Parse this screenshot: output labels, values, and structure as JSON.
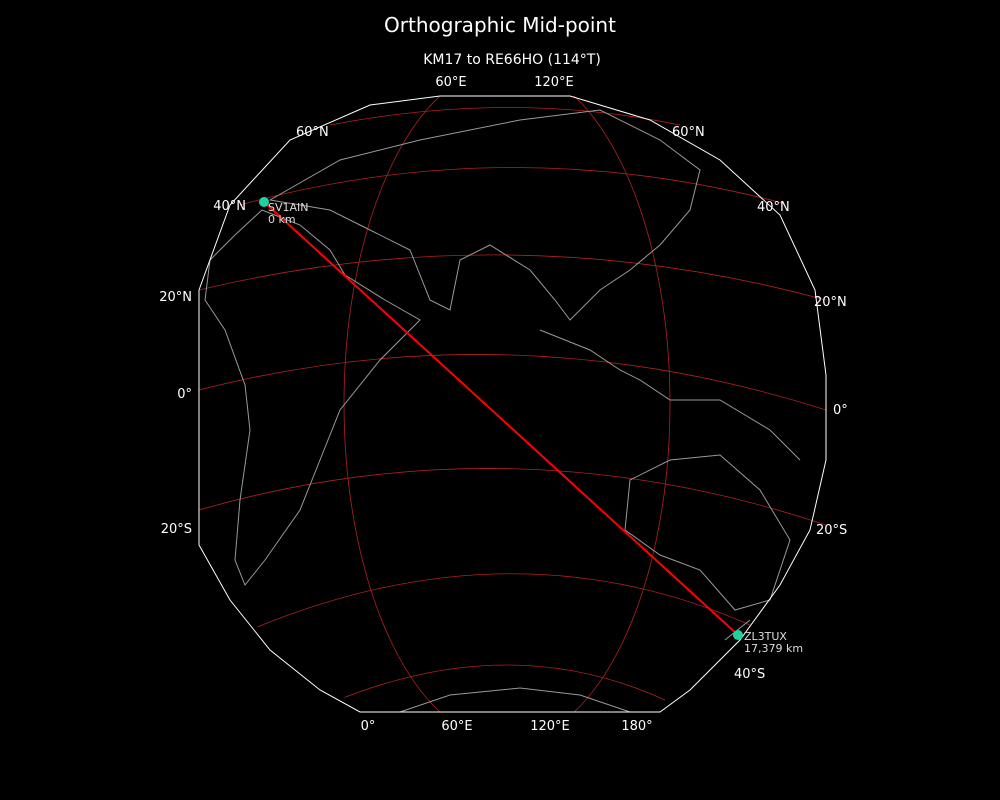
{
  "title": "Orthographic Mid-point",
  "subtitle": "KM17 to RE66HO (114°T)",
  "colors": {
    "background": "#000000",
    "graticule": "#b22222",
    "path": "#ff0000",
    "marker": "#1fd3a0",
    "coastline": "#999999",
    "outline": "#ffffff"
  },
  "lat_labels_left": [
    "40°N",
    "20°N",
    "0°",
    "20°S"
  ],
  "lat_labels_right": [
    "60°N",
    "40°N",
    "20°N",
    "0°",
    "20°S",
    "40°S"
  ],
  "lat_label_top_left": "60°N",
  "lon_labels_top": [
    "60°E",
    "120°E"
  ],
  "lon_labels_bottom": [
    "0°",
    "60°E",
    "120°E",
    "180°"
  ],
  "points": [
    {
      "call": "SV1AIN",
      "distance": "0 km",
      "lat": 38,
      "lon": 23.7
    },
    {
      "call": "ZL3TUX",
      "distance": "17,379 km",
      "lat": -43.5,
      "lon": 172.6
    }
  ]
}
